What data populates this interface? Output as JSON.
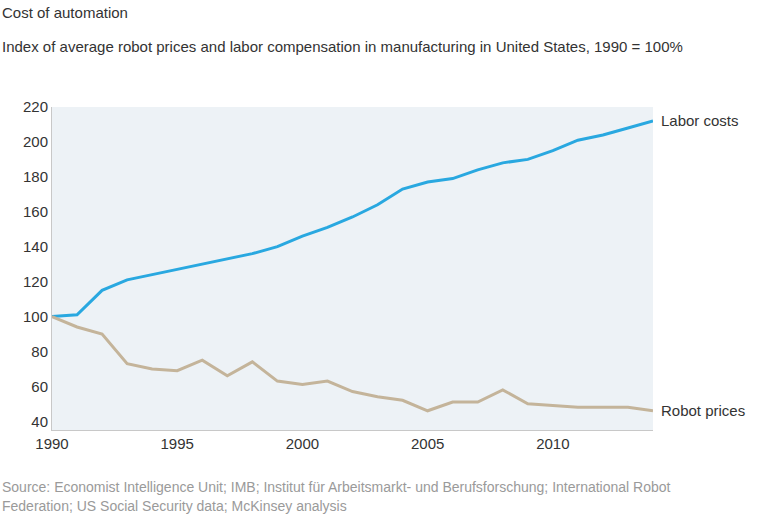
{
  "chart_data": {
    "type": "line",
    "title": "Cost of automation",
    "subtitle": "Index of average robot prices and labor compensation in manufacturing in United States, 1990 = 100%",
    "source": "Source: Economist Intelligence Unit; IMB; Institut für Arbeitsmarkt- und Berufsforschung; International Robot Federation; US Social Security data; McKinsey analysis",
    "x": [
      1990,
      1991,
      1992,
      1993,
      1994,
      1995,
      1996,
      1997,
      1998,
      1999,
      2000,
      2001,
      2002,
      2003,
      2004,
      2005,
      2006,
      2007,
      2008,
      2009,
      2010,
      2011,
      2012,
      2013,
      2014
    ],
    "series": [
      {
        "name": "Labor costs",
        "color": "#29a8e0",
        "values": [
          100,
          101,
          115,
          121,
          124,
          127,
          130,
          133,
          136,
          140,
          146,
          151,
          157,
          164,
          173,
          177,
          179,
          184,
          188,
          190,
          195,
          201,
          204,
          208,
          212
        ]
      },
      {
        "name": "Robot prices",
        "color": "#c4b49a",
        "values": [
          100,
          94,
          90,
          73,
          70,
          69,
          75,
          66,
          74,
          63,
          61,
          63,
          57,
          54,
          52,
          46,
          51,
          51,
          58,
          50,
          49,
          48,
          48,
          48,
          46
        ]
      }
    ],
    "xlim": [
      1990,
      2014
    ],
    "xticks": [
      1990,
      1995,
      2000,
      2005,
      2010
    ],
    "ylim": [
      35,
      220
    ],
    "yticks": [
      40,
      60,
      80,
      100,
      120,
      140,
      160,
      180,
      200,
      220
    ],
    "grid": false
  }
}
